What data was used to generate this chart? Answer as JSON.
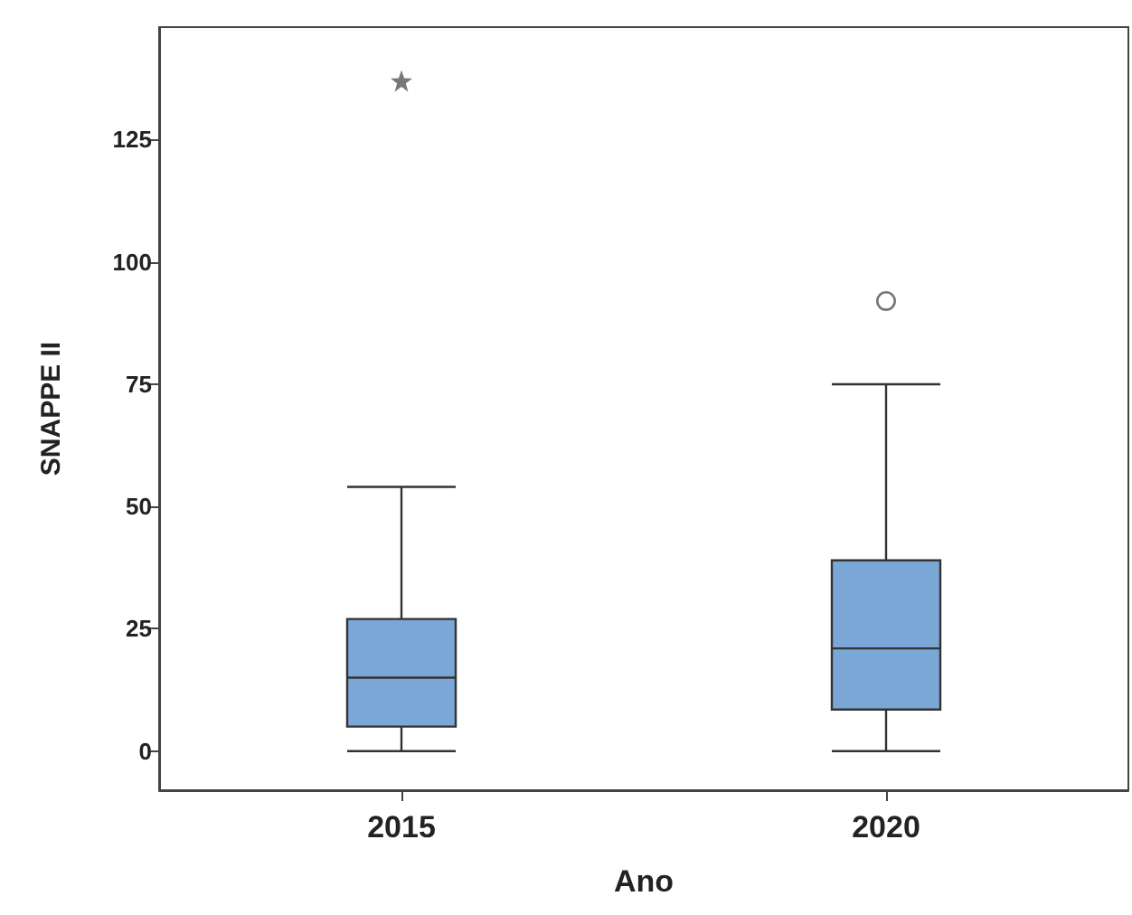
{
  "chart_data": {
    "type": "box",
    "xlabel": "Ano",
    "ylabel": "SNAPPE II",
    "categories": [
      "2015",
      "2020"
    ],
    "ylim": [
      -8,
      148
    ],
    "yticks": [
      0,
      25,
      50,
      75,
      100,
      125
    ],
    "grid": false,
    "series": [
      {
        "color": "#7ba7d7",
        "boxes": [
          {
            "low": 0,
            "q1": 5,
            "median": 15,
            "q3": 27,
            "high": 54
          },
          {
            "low": 0,
            "q1": 8.5,
            "median": 21,
            "q3": 39,
            "high": 75
          }
        ]
      },
      {
        "type": "scatter",
        "color": "#555555",
        "marker": "star",
        "values": [
          137,
          null
        ]
      },
      {
        "type": "scatter",
        "color": "#555555",
        "marker": "circle",
        "values": [
          null,
          92
        ]
      }
    ]
  }
}
